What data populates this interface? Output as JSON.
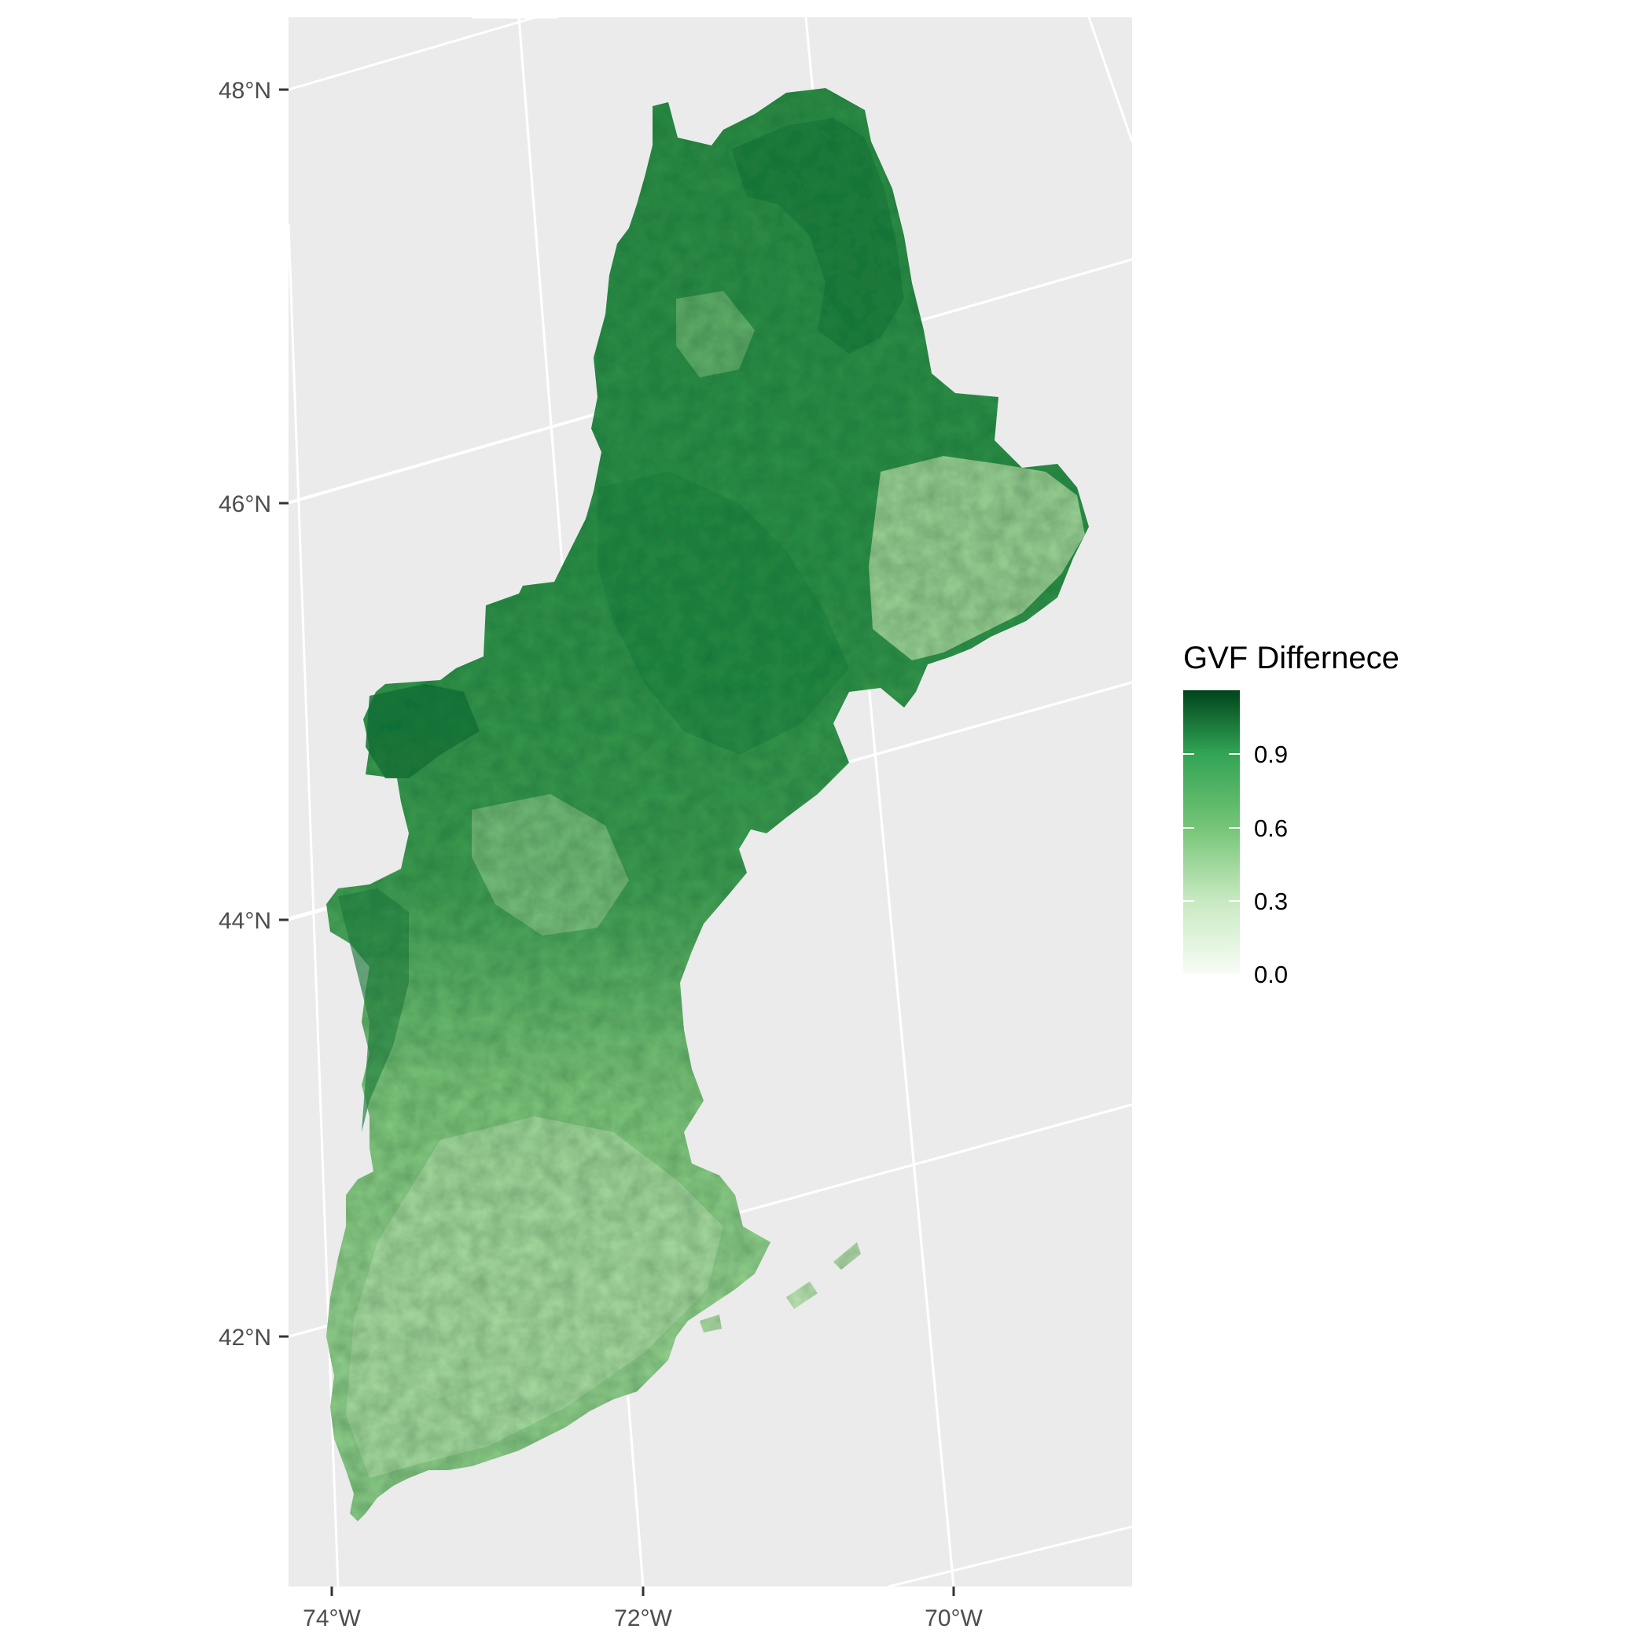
{
  "map": {
    "panel_background": "#ebebeb",
    "gridline_color": "#ffffff",
    "y_axis": {
      "ticks": [
        {
          "value": 48,
          "label": "48°N"
        },
        {
          "value": 46,
          "label": "46°N"
        },
        {
          "value": 44,
          "label": "44°N"
        },
        {
          "value": 42,
          "label": "42°N"
        }
      ]
    },
    "x_axis": {
      "ticks": [
        {
          "value": -74,
          "label": "74°W"
        },
        {
          "value": -72,
          "label": "72°W"
        },
        {
          "value": -70,
          "label": "70°W"
        }
      ]
    },
    "fill_scale": {
      "low": "#f7fcf5",
      "mid": "#74c476",
      "high": "#00441b"
    }
  },
  "legend": {
    "title": "GVF Differnece",
    "breaks": [
      {
        "value": 0.0,
        "label": "0.0"
      },
      {
        "value": 0.3,
        "label": "0.3"
      },
      {
        "value": 0.6,
        "label": "0.6"
      },
      {
        "value": 0.9,
        "label": "0.9"
      }
    ],
    "range": [
      0.0,
      1.15
    ]
  }
}
